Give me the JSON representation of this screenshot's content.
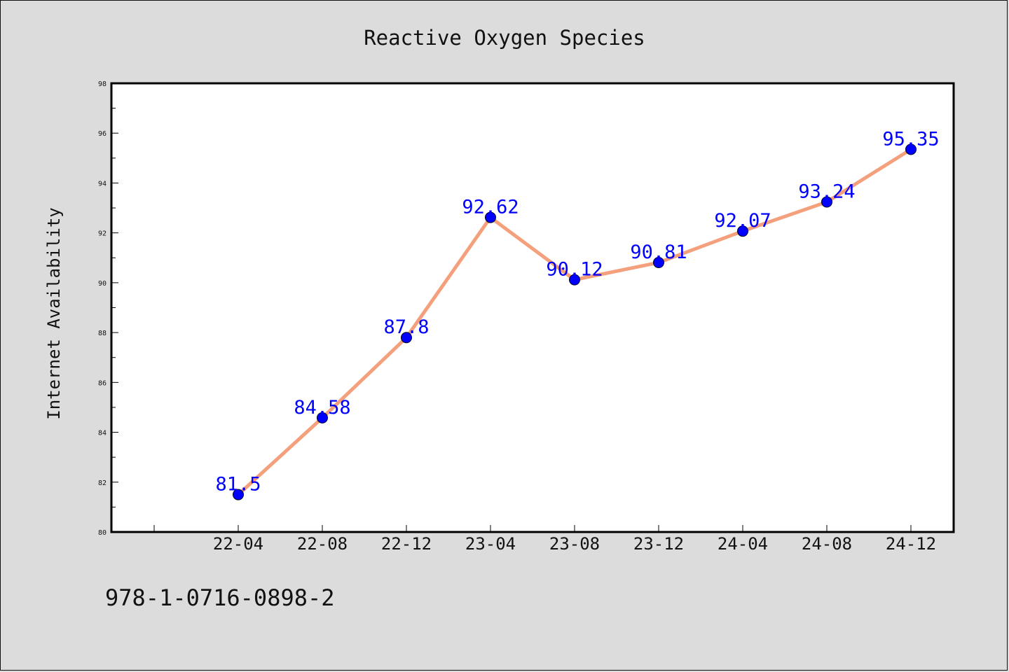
{
  "chart_data": {
    "type": "line",
    "title": "Reactive Oxygen Species",
    "xlabel": "",
    "ylabel": "Internet Availability",
    "categories": [
      "22-04",
      "22-08",
      "22-12",
      "23-04",
      "23-08",
      "23-12",
      "24-04",
      "24-08",
      "24-12"
    ],
    "series": [
      {
        "values": [
          81.5,
          84.58,
          87.8,
          92.62,
          90.12,
          90.81,
          92.07,
          93.24,
          95.35
        ],
        "labels": [
          "81.5",
          "84.58",
          "87.8",
          "92.62",
          "90.12",
          "90.81",
          "92.07",
          "93.24",
          "95.35"
        ]
      }
    ],
    "ylim": [
      80,
      98
    ],
    "yticks": [
      80,
      82,
      84,
      86,
      88,
      90,
      92,
      94,
      96,
      98
    ],
    "grid": false,
    "legend": "none"
  },
  "colors": {
    "line": "#f4a07c",
    "marker": "#0000ff",
    "data_label": "#0000ff",
    "background": "#dcdcdc",
    "plot_background": "#ffffff"
  },
  "footer_text": "978-1-0716-0898-2"
}
